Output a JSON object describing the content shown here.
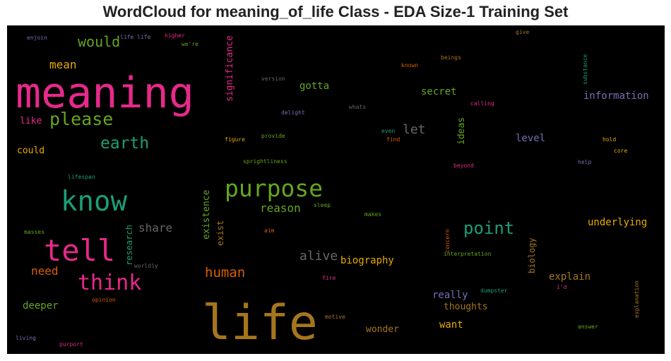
{
  "title": "WordCloud for meaning_of_life Class - EDA Size-1 Training Set",
  "colors": {
    "pink": "#e7298a",
    "green": "#66a61e",
    "teal": "#1b9e77",
    "orange": "#d95f02",
    "gold": "#e6ab02",
    "brown": "#a6761d",
    "purple": "#7570b3",
    "gray": "#666666"
  },
  "words": [
    {
      "text": "meaning",
      "color": "#e7298a"
    },
    {
      "text": "life",
      "color": "#a6761d"
    },
    {
      "text": "purpose",
      "color": "#66a61e"
    },
    {
      "text": "know",
      "color": "#1b9e77"
    },
    {
      "text": "tell",
      "color": "#e7298a"
    },
    {
      "text": "think",
      "color": "#e7298a"
    },
    {
      "text": "please",
      "color": "#66a61e"
    },
    {
      "text": "earth",
      "color": "#1b9e77"
    },
    {
      "text": "point",
      "color": "#1b9e77"
    },
    {
      "text": "would",
      "color": "#66a61e"
    },
    {
      "text": "mean",
      "color": "#e6ab02"
    },
    {
      "text": "human",
      "color": "#d95f02"
    },
    {
      "text": "reason",
      "color": "#66a61e"
    },
    {
      "text": "share",
      "color": "#666666"
    },
    {
      "text": "let",
      "color": "#666666"
    },
    {
      "text": "alive",
      "color": "#666666"
    },
    {
      "text": "gotta",
      "color": "#66a61e"
    },
    {
      "text": "secret",
      "color": "#66a61e"
    },
    {
      "text": "information",
      "color": "#7570b3"
    },
    {
      "text": "level",
      "color": "#7570b3"
    },
    {
      "text": "underlying",
      "color": "#e6ab02"
    },
    {
      "text": "biography",
      "color": "#e6ab02"
    },
    {
      "text": "explain",
      "color": "#a6761d"
    },
    {
      "text": "really",
      "color": "#7570b3"
    },
    {
      "text": "thoughts",
      "color": "#a6761d"
    },
    {
      "text": "want",
      "color": "#e6ab02"
    },
    {
      "text": "wonder",
      "color": "#a6761d"
    },
    {
      "text": "need",
      "color": "#d95f02"
    },
    {
      "text": "deeper",
      "color": "#66a61e"
    },
    {
      "text": "like",
      "color": "#e7298a"
    },
    {
      "text": "could",
      "color": "#e6ab02"
    },
    {
      "text": "significance",
      "color": "#e7298a"
    },
    {
      "text": "ideas",
      "color": "#66a61e"
    },
    {
      "text": "existence",
      "color": "#66a61e"
    },
    {
      "text": "exist",
      "color": "#a6761d"
    },
    {
      "text": "research",
      "color": "#1b9e77"
    },
    {
      "text": "biology",
      "color": "#a6761d"
    },
    {
      "text": "enjoin",
      "color": "#7570b3"
    },
    {
      "text": "life life",
      "color": "#7570b3"
    },
    {
      "text": "higher",
      "color": "#e7298a"
    },
    {
      "text": "we're",
      "color": "#66a61e"
    },
    {
      "text": "give",
      "color": "#a6761d"
    },
    {
      "text": "beings",
      "color": "#a6761d"
    },
    {
      "text": "known",
      "color": "#d95f02"
    },
    {
      "text": "version",
      "color": "#666666"
    },
    {
      "text": "substance",
      "color": "#1b9e77"
    },
    {
      "text": "calling",
      "color": "#e7298a"
    },
    {
      "text": "whats",
      "color": "#666666"
    },
    {
      "text": "delight",
      "color": "#7570b3"
    },
    {
      "text": "even",
      "color": "#1b9e77"
    },
    {
      "text": "find",
      "color": "#d95f02"
    },
    {
      "text": "figure",
      "color": "#e6ab02"
    },
    {
      "text": "provide",
      "color": "#66a61e"
    },
    {
      "text": "hold",
      "color": "#e6ab02"
    },
    {
      "text": "core",
      "color": "#e6ab02"
    },
    {
      "text": "sprightliness",
      "color": "#66a61e"
    },
    {
      "text": "beyond",
      "color": "#e7298a"
    },
    {
      "text": "help",
      "color": "#7570b3"
    },
    {
      "text": "lifespan",
      "color": "#1b9e77"
    },
    {
      "text": "sleep",
      "color": "#66a61e"
    },
    {
      "text": "makes",
      "color": "#66a61e"
    },
    {
      "text": "masses",
      "color": "#66a61e"
    },
    {
      "text": "aim",
      "color": "#d95f02"
    },
    {
      "text": "concern",
      "color": "#d95f02"
    },
    {
      "text": "interpretation",
      "color": "#66a61e"
    },
    {
      "text": "worldly",
      "color": "#666666"
    },
    {
      "text": "fire",
      "color": "#e7298a"
    },
    {
      "text": "dumpster",
      "color": "#1b9e77"
    },
    {
      "text": "i'd",
      "color": "#e7298a"
    },
    {
      "text": "explanation",
      "color": "#a6761d"
    },
    {
      "text": "opinion",
      "color": "#d95f02"
    },
    {
      "text": "motive",
      "color": "#a6761d"
    },
    {
      "text": "answer",
      "color": "#66a61e"
    },
    {
      "text": "living",
      "color": "#7570b3"
    },
    {
      "text": "purport",
      "color": "#e7298a"
    }
  ]
}
